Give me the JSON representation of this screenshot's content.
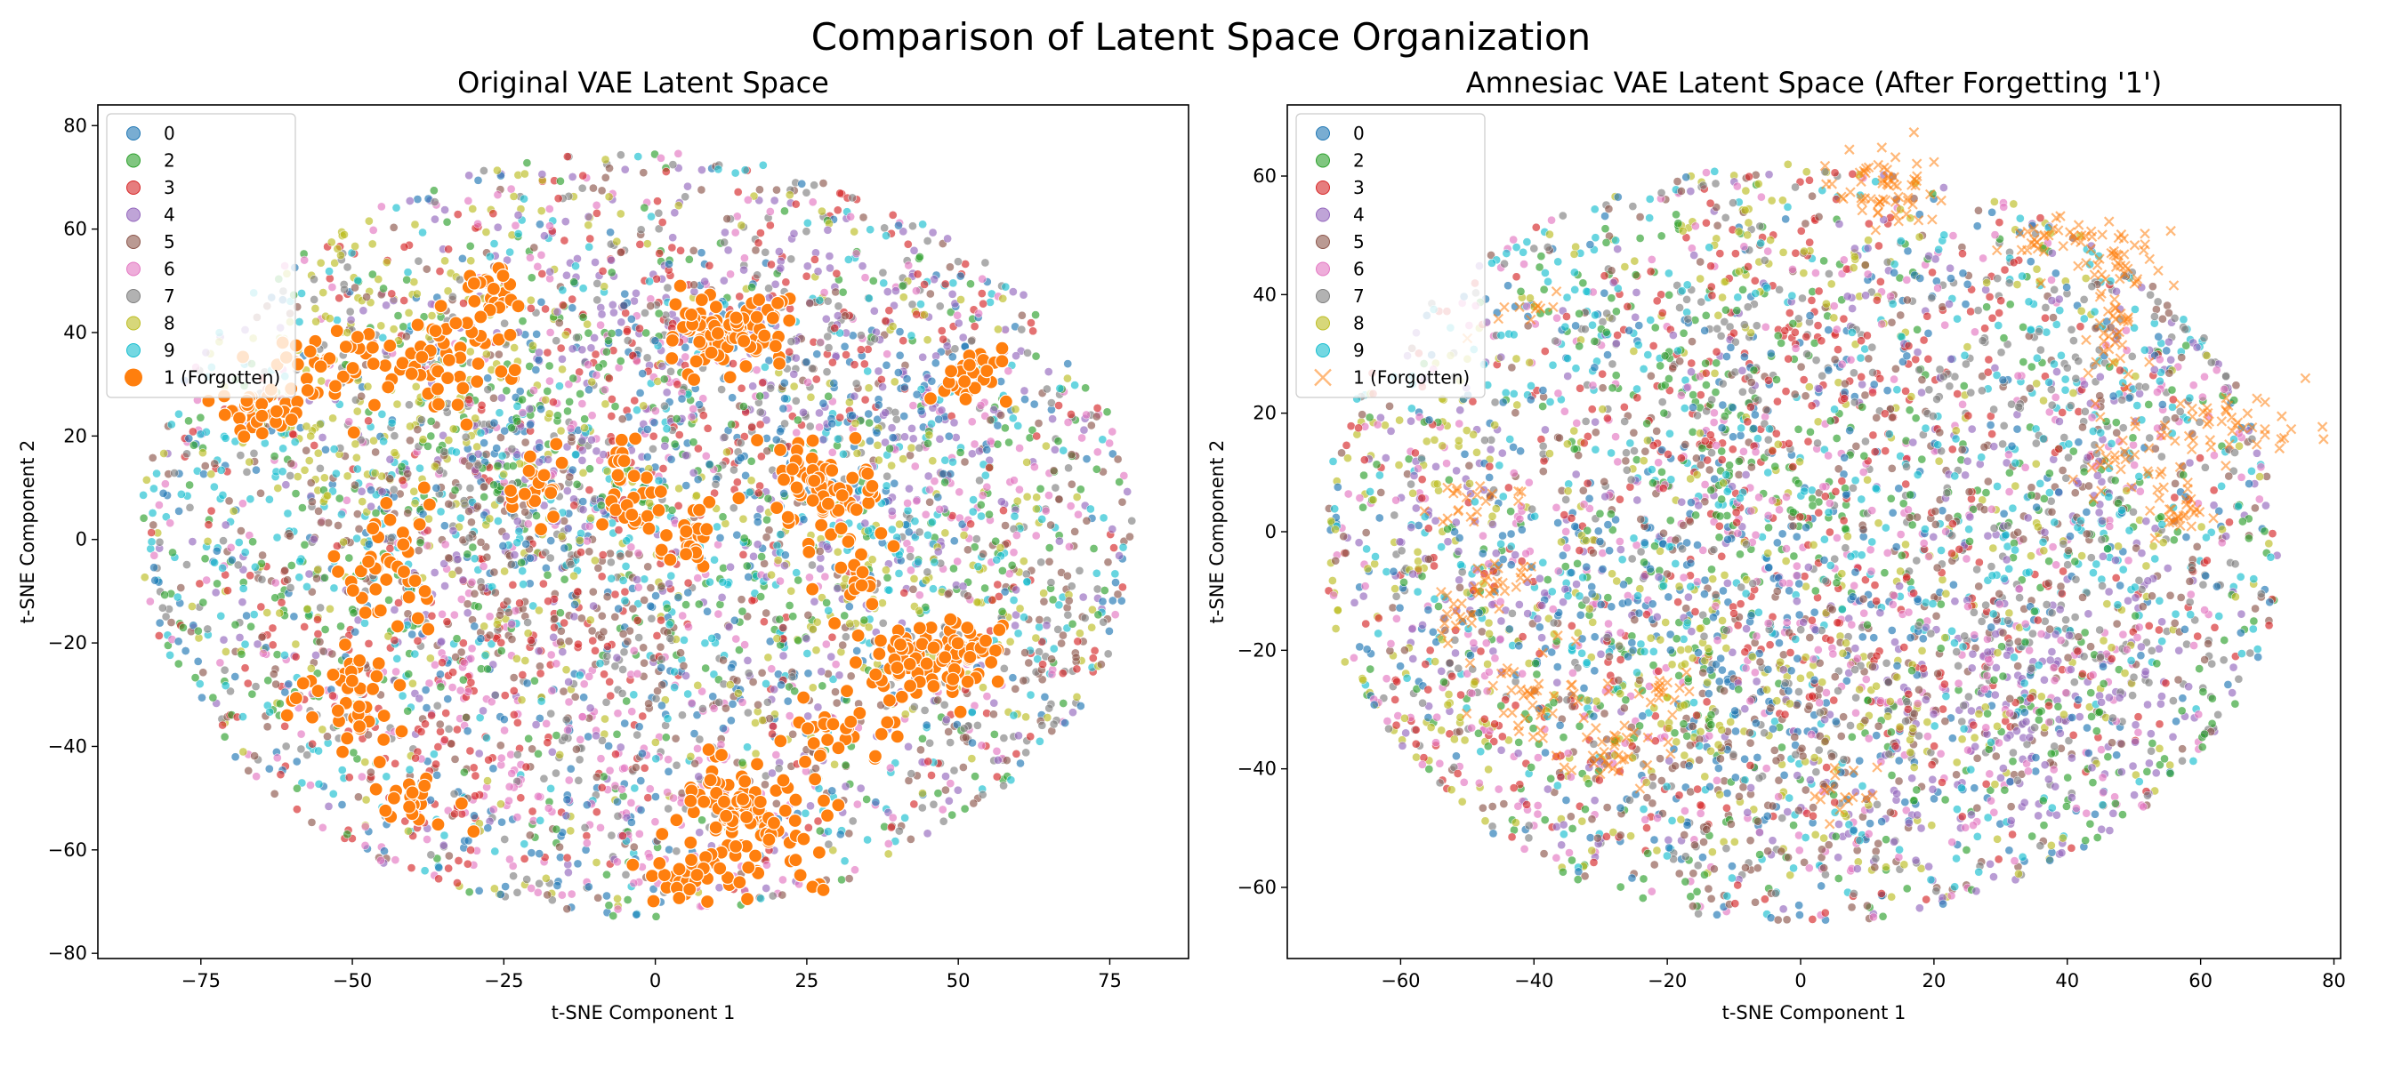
{
  "figure": {
    "suptitle": "Comparison of Latent Space Organization"
  },
  "palette": {
    "0": "#1f77b4",
    "2": "#2ca02c",
    "3": "#d62728",
    "4": "#9467bd",
    "5": "#8c564b",
    "6": "#e377c2",
    "7": "#7f7f7f",
    "8": "#bcbd22",
    "9": "#17becf",
    "1": "#ff7f0e"
  },
  "chart_data": [
    {
      "type": "scatter",
      "title": "Original VAE Latent Space",
      "xlabel": "t-SNE Component 1",
      "ylabel": "t-SNE Component 2",
      "xlim": [
        -92,
        88
      ],
      "ylim": [
        -81,
        84
      ],
      "xticks": [
        -75,
        -50,
        -25,
        0,
        25,
        50,
        75
      ],
      "yticks": [
        -80,
        -60,
        -40,
        -20,
        0,
        20,
        40,
        60,
        80
      ],
      "grid": false,
      "legend_position": "top-left",
      "legend": [
        "0",
        "2",
        "3",
        "4",
        "5",
        "6",
        "7",
        "8",
        "9",
        "1 (Forgotten)"
      ],
      "series": [
        {
          "name": "0",
          "count": 520,
          "approx_extent": {
            "x": [
              -86,
              80
            ],
            "y": [
              -74,
              76
            ]
          }
        },
        {
          "name": "2",
          "count": 520,
          "approx_extent": {
            "x": [
              -86,
              80
            ],
            "y": [
              -74,
              76
            ]
          }
        },
        {
          "name": "3",
          "count": 520,
          "approx_extent": {
            "x": [
              -86,
              80
            ],
            "y": [
              -74,
              76
            ]
          }
        },
        {
          "name": "4",
          "count": 520,
          "approx_extent": {
            "x": [
              -86,
              80
            ],
            "y": [
              -74,
              76
            ]
          }
        },
        {
          "name": "5",
          "count": 520,
          "approx_extent": {
            "x": [
              -86,
              80
            ],
            "y": [
              -74,
              76
            ]
          }
        },
        {
          "name": "6",
          "count": 520,
          "approx_extent": {
            "x": [
              -86,
              80
            ],
            "y": [
              -74,
              76
            ]
          }
        },
        {
          "name": "7",
          "count": 520,
          "approx_extent": {
            "x": [
              -86,
              80
            ],
            "y": [
              -74,
              76
            ]
          }
        },
        {
          "name": "8",
          "count": 520,
          "approx_extent": {
            "x": [
              -86,
              80
            ],
            "y": [
              -74,
              76
            ]
          }
        },
        {
          "name": "9",
          "count": 520,
          "approx_extent": {
            "x": [
              -86,
              80
            ],
            "y": [
              -74,
              76
            ]
          }
        },
        {
          "name": "1 (Forgotten)",
          "marker": "filled-circle-large",
          "clusters": [
            {
              "x": 12,
              "y": 40,
              "sx": 5,
              "sy": 4,
              "n": 95
            },
            {
              "x": 28,
              "y": 10,
              "sx": 5,
              "sy": 5,
              "n": 75
            },
            {
              "x": 42,
              "y": -25,
              "sx": 5,
              "sy": 4,
              "n": 65
            },
            {
              "x": 52,
              "y": -22,
              "sx": 3,
              "sy": 4,
              "n": 40
            },
            {
              "x": 18,
              "y": -55,
              "sx": 6,
              "sy": 5,
              "n": 70
            },
            {
              "x": 10,
              "y": -50,
              "sx": 3,
              "sy": 4,
              "n": 35
            },
            {
              "x": 5,
              "y": -65,
              "sx": 4,
              "sy": 3,
              "n": 35
            },
            {
              "x": -35,
              "y": 35,
              "sx": 6,
              "sy": 5,
              "n": 50
            },
            {
              "x": -55,
              "y": 32,
              "sx": 5,
              "sy": 5,
              "n": 40
            },
            {
              "x": -65,
              "y": 25,
              "sx": 4,
              "sy": 3,
              "n": 30
            },
            {
              "x": -45,
              "y": -5,
              "sx": 4,
              "sy": 6,
              "n": 40
            },
            {
              "x": -50,
              "y": -30,
              "sx": 4,
              "sy": 5,
              "n": 40
            },
            {
              "x": -5,
              "y": 10,
              "sx": 3,
              "sy": 5,
              "n": 30
            },
            {
              "x": 5,
              "y": 0,
              "sx": 3,
              "sy": 3,
              "n": 25
            },
            {
              "x": 52,
              "y": 32,
              "sx": 3,
              "sy": 3,
              "n": 25
            },
            {
              "x": 30,
              "y": -38,
              "sx": 4,
              "sy": 3,
              "n": 25
            },
            {
              "x": -28,
              "y": 48,
              "sx": 3,
              "sy": 4,
              "n": 25
            },
            {
              "x": -20,
              "y": 10,
              "sx": 3,
              "sy": 3,
              "n": 20
            },
            {
              "x": -40,
              "y": -50,
              "sx": 4,
              "sy": 3,
              "n": 20
            },
            {
              "x": 35,
              "y": -8,
              "sx": 3,
              "sy": 3,
              "n": 15
            }
          ]
        }
      ]
    },
    {
      "type": "scatter",
      "title": "Amnesiac VAE Latent Space (After Forgetting '1')",
      "xlabel": "t-SNE Component 1",
      "ylabel": "t-SNE Component 2",
      "xlim": [
        -77,
        81
      ],
      "ylim": [
        -72,
        72
      ],
      "xticks": [
        -60,
        -40,
        -20,
        0,
        20,
        40,
        60,
        80
      ],
      "yticks": [
        -60,
        -40,
        -20,
        0,
        20,
        40,
        60
      ],
      "grid": false,
      "legend_position": "top-left",
      "legend": [
        "0",
        "2",
        "3",
        "4",
        "5",
        "6",
        "7",
        "8",
        "9",
        "1 (Forgotten)"
      ],
      "series": [
        {
          "name": "0",
          "count": 520,
          "approx_extent": {
            "x": [
              -72,
              72
            ],
            "y": [
              -66,
              62
            ]
          }
        },
        {
          "name": "2",
          "count": 520,
          "approx_extent": {
            "x": [
              -72,
              72
            ],
            "y": [
              -66,
              62
            ]
          }
        },
        {
          "name": "3",
          "count": 520,
          "approx_extent": {
            "x": [
              -72,
              72
            ],
            "y": [
              -66,
              62
            ]
          }
        },
        {
          "name": "4",
          "count": 520,
          "approx_extent": {
            "x": [
              -72,
              72
            ],
            "y": [
              -66,
              62
            ]
          }
        },
        {
          "name": "5",
          "count": 520,
          "approx_extent": {
            "x": [
              -72,
              72
            ],
            "y": [
              -66,
              62
            ]
          }
        },
        {
          "name": "6",
          "count": 520,
          "approx_extent": {
            "x": [
              -72,
              72
            ],
            "y": [
              -66,
              62
            ]
          }
        },
        {
          "name": "7",
          "count": 520,
          "approx_extent": {
            "x": [
              -72,
              72
            ],
            "y": [
              -66,
              62
            ]
          }
        },
        {
          "name": "8",
          "count": 520,
          "approx_extent": {
            "x": [
              -72,
              72
            ],
            "y": [
              -66,
              62
            ]
          }
        },
        {
          "name": "9",
          "count": 520,
          "approx_extent": {
            "x": [
              -72,
              72
            ],
            "y": [
              -66,
              62
            ]
          }
        },
        {
          "name": "1 (Forgotten)",
          "marker": "x",
          "clusters": [
            {
              "x": 12,
              "y": 57,
              "sx": 4,
              "sy": 4,
              "n": 60
            },
            {
              "x": 47,
              "y": 47,
              "sx": 4,
              "sy": 4,
              "n": 45
            },
            {
              "x": 37,
              "y": 50,
              "sx": 3,
              "sy": 2,
              "n": 25
            },
            {
              "x": 47,
              "y": 32,
              "sx": 2,
              "sy": 5,
              "n": 30
            },
            {
              "x": 65,
              "y": 18,
              "sx": 5,
              "sy": 3,
              "n": 45
            },
            {
              "x": 58,
              "y": 5,
              "sx": 3,
              "sy": 3,
              "n": 30
            },
            {
              "x": 47,
              "y": 12,
              "sx": 3,
              "sy": 3,
              "n": 20
            },
            {
              "x": -50,
              "y": 5,
              "sx": 3,
              "sy": 2,
              "n": 20
            },
            {
              "x": -45,
              "y": -8,
              "sx": 3,
              "sy": 2,
              "n": 20
            },
            {
              "x": -52,
              "y": -14,
              "sx": 2,
              "sy": 2,
              "n": 15
            },
            {
              "x": -40,
              "y": -28,
              "sx": 5,
              "sy": 4,
              "n": 40
            },
            {
              "x": -28,
              "y": -38,
              "sx": 4,
              "sy": 3,
              "n": 30
            },
            {
              "x": -20,
              "y": -27,
              "sx": 3,
              "sy": 2,
              "n": 15
            },
            {
              "x": 5,
              "y": -44,
              "sx": 4,
              "sy": 2,
              "n": 15
            },
            {
              "x": -43,
              "y": 37,
              "sx": 3,
              "sy": 2,
              "n": 10
            }
          ]
        }
      ]
    }
  ]
}
